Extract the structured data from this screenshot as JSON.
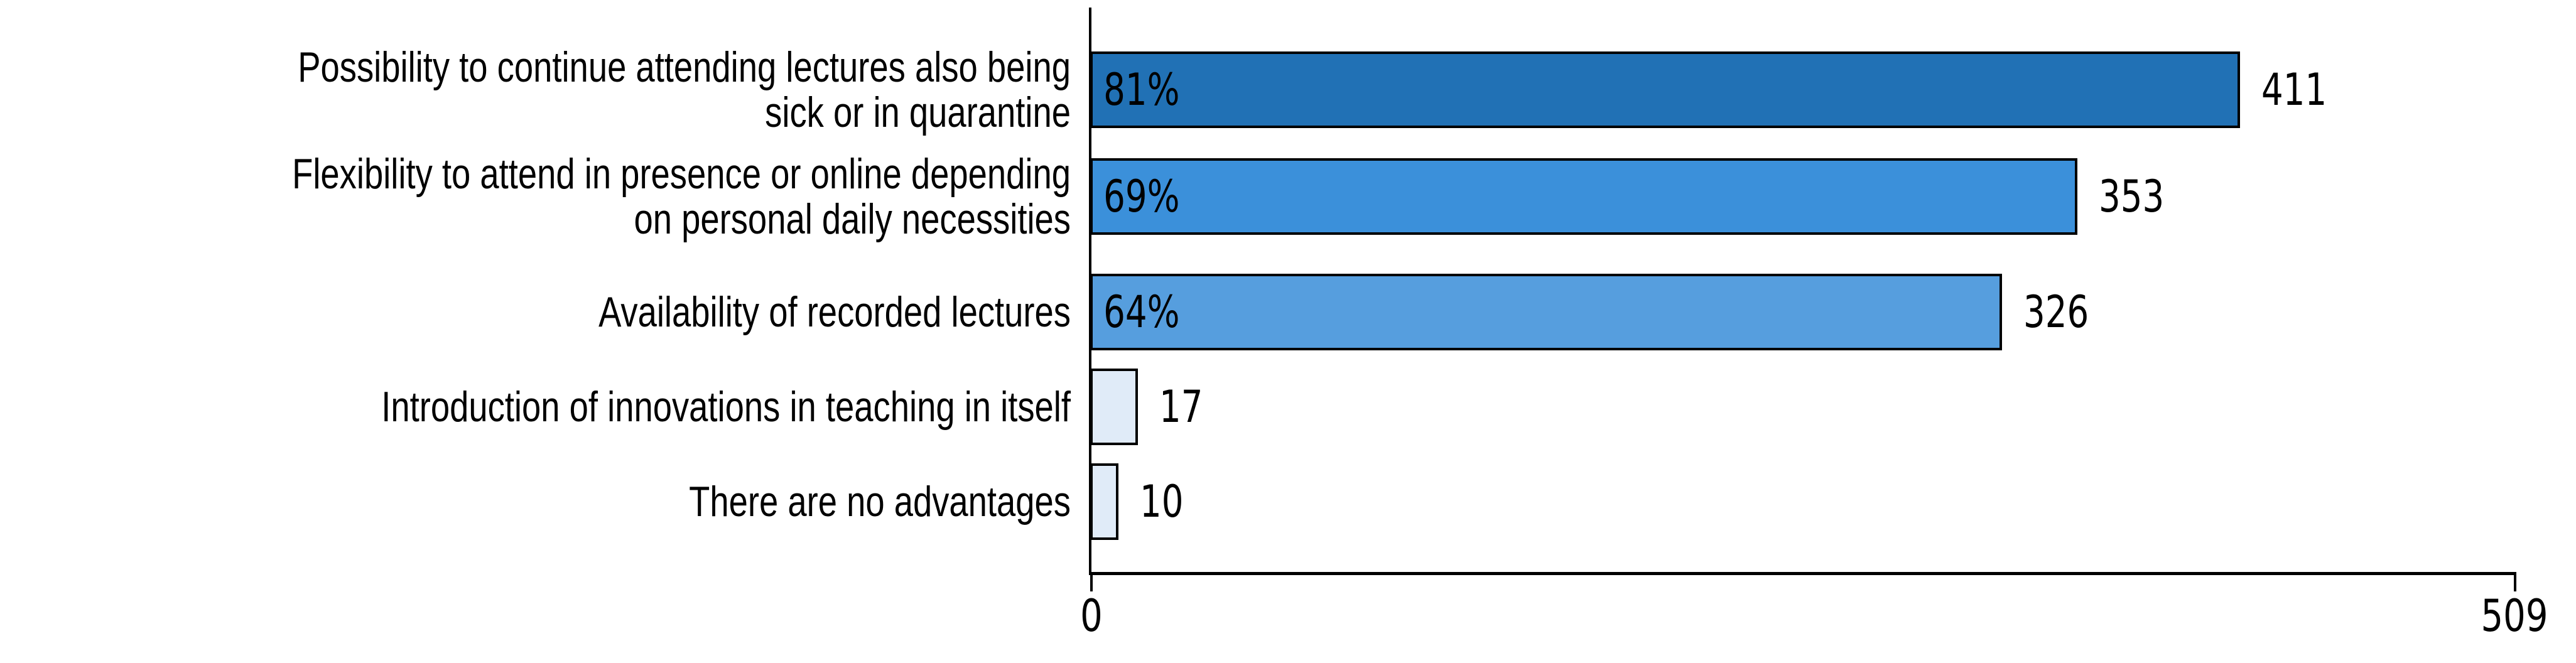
{
  "chart_data": {
    "type": "bar",
    "orientation": "horizontal",
    "title": "",
    "xlabel": "",
    "ylabel": "",
    "grid": false,
    "legend": false,
    "xlim": [
      0,
      509
    ],
    "x_tick_labels": [
      "0",
      "509"
    ],
    "axis_color": "#000000",
    "bar_border_color": "#000000",
    "text_color": "#000000",
    "background_color": "#ffffff",
    "categories": [
      "Possibility to continue attending lectures also being sick or in quarantine",
      "Flexibility to attend in presence or online depending on personal daily necessities",
      "Availability of recorded lectures",
      "Introduction of innovations in teaching in itself",
      "There are no advantages"
    ],
    "values": [
      411,
      353,
      326,
      17,
      10
    ],
    "rows": [
      {
        "label_lines": [
          "Possibility to continue attending lectures also being",
          "sick or in quarantine"
        ],
        "value": 411,
        "percent_label": "81%",
        "value_label": "411",
        "color": "#2171b5"
      },
      {
        "label_lines": [
          "Flexibility to attend in presence or online depending",
          "on personal daily necessities"
        ],
        "value": 353,
        "percent_label": "69%",
        "value_label": "353",
        "color": "#3b90da"
      },
      {
        "label_lines": [
          "Availability of recorded lectures",
          ""
        ],
        "value": 326,
        "percent_label": "64%",
        "value_label": "326",
        "color": "#569ede"
      },
      {
        "label_lines": [
          "Introduction of innovations in teaching in itself",
          ""
        ],
        "value": 17,
        "percent_label": "",
        "value_label": "17",
        "color": "#e0ebf8"
      },
      {
        "label_lines": [
          "There are no advantages",
          ""
        ],
        "value": 10,
        "percent_label": "",
        "value_label": "10",
        "color": "#e0ebf8"
      }
    ]
  }
}
